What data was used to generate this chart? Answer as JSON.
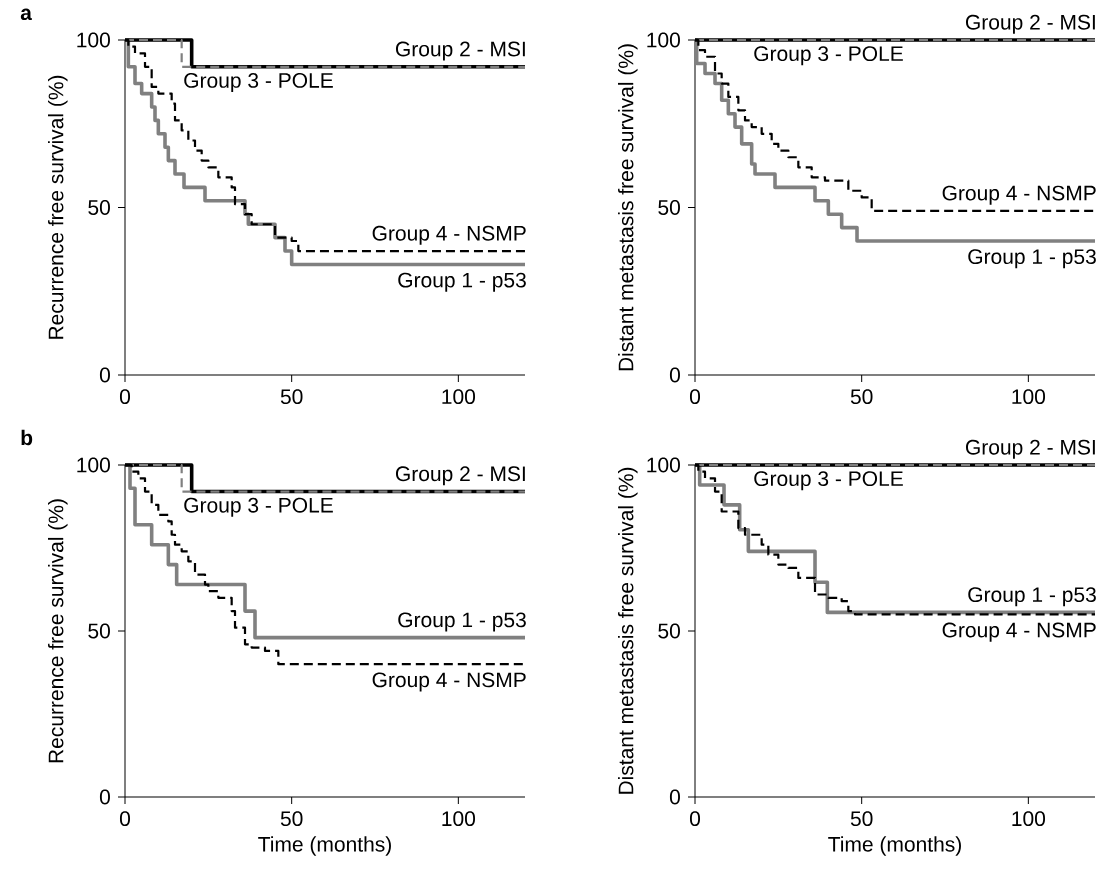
{
  "chart_data": [
    {
      "type": "step",
      "title": "a",
      "ylabel": "Recurrence free survival (%)",
      "xlim": [
        0,
        120
      ],
      "ylim": [
        0,
        100
      ],
      "xticks": [
        0,
        50,
        100
      ],
      "yticks": [
        0,
        50,
        100
      ],
      "series": [
        {
          "name": "Group 1 - p53",
          "color": "#808080",
          "line_style": "solid",
          "x": [
            0,
            1,
            3,
            5,
            8,
            9,
            10,
            12,
            13,
            15,
            17.7,
            24,
            36,
            37,
            45,
            48,
            50,
            120
          ],
          "values": [
            100,
            92,
            87,
            84,
            80,
            76,
            72,
            68,
            64,
            60,
            56,
            52,
            48,
            45,
            41,
            37,
            33,
            33
          ]
        },
        {
          "name": "Group 2 - MSI",
          "color": "#000000",
          "line_style": "solid",
          "x": [
            0,
            20,
            120
          ],
          "values": [
            100,
            92,
            92
          ]
        },
        {
          "name": "Group 3 - POLE",
          "color": "#808080",
          "line_style": "dashed",
          "x": [
            0,
            17,
            120
          ],
          "values": [
            100,
            92,
            92
          ]
        },
        {
          "name": "Group 4 - NSMP",
          "color": "#000000",
          "line_style": "dashed",
          "x": [
            0,
            1,
            3,
            6,
            8,
            10,
            14,
            15,
            17,
            19,
            21,
            23,
            25,
            28,
            32,
            33,
            36,
            38,
            45,
            50,
            52,
            120
          ],
          "values": [
            100,
            98,
            96,
            92,
            86,
            84,
            81,
            76,
            73,
            70,
            67,
            64,
            62,
            59,
            56,
            51,
            48,
            45,
            41,
            40,
            37,
            37
          ]
        }
      ]
    },
    {
      "type": "step",
      "ylabel": "Distant metastasis free survival (%)",
      "xlim": [
        0,
        120
      ],
      "ylim": [
        0,
        100
      ],
      "xticks": [
        0,
        50,
        100
      ],
      "yticks": [
        0,
        50,
        100
      ],
      "series": [
        {
          "name": "Group 1 - p53",
          "color": "#808080",
          "line_style": "solid",
          "x": [
            0,
            0.5,
            3,
            6,
            8,
            10,
            12,
            14,
            17,
            18,
            24,
            36,
            40,
            44,
            48.6,
            120
          ],
          "values": [
            100,
            93,
            90,
            87,
            82,
            78,
            74,
            69,
            63,
            60,
            56,
            52,
            48,
            44,
            40,
            40
          ]
        },
        {
          "name": "Group 2 - MSI",
          "color": "#000000",
          "line_style": "solid",
          "x": [
            0,
            120
          ],
          "values": [
            100,
            100
          ]
        },
        {
          "name": "Group 3 - POLE",
          "color": "#808080",
          "line_style": "dashed",
          "x": [
            0,
            120
          ],
          "values": [
            100,
            100
          ]
        },
        {
          "name": "Group 4 - NSMP",
          "color": "#000000",
          "line_style": "dashed",
          "x": [
            0,
            1,
            3,
            6,
            8,
            10,
            13,
            15,
            17,
            20,
            23,
            25,
            28,
            31,
            35,
            39,
            46,
            50,
            53,
            120
          ],
          "values": [
            100,
            97,
            95,
            90,
            87,
            83,
            79,
            76,
            74,
            72,
            69,
            67,
            65,
            62,
            59,
            58,
            55,
            53,
            49,
            49
          ]
        }
      ]
    },
    {
      "type": "step",
      "title": "b",
      "xlabel": "Time (months)",
      "ylabel": "Recurrence free survival (%)",
      "xlim": [
        0,
        120
      ],
      "ylim": [
        0,
        100
      ],
      "xticks": [
        0,
        50,
        100
      ],
      "yticks": [
        0,
        50,
        100
      ],
      "series": [
        {
          "name": "Group 1 - p53",
          "color": "#808080",
          "line_style": "solid",
          "x": [
            0,
            1.5,
            3,
            8,
            13,
            15.5,
            36,
            39,
            120
          ],
          "values": [
            100,
            93,
            82,
            76,
            70,
            64,
            56,
            48,
            48
          ]
        },
        {
          "name": "Group 2 - MSI",
          "color": "#000000",
          "line_style": "solid",
          "x": [
            0,
            20,
            120
          ],
          "values": [
            100,
            92,
            92
          ]
        },
        {
          "name": "Group 3 - POLE",
          "color": "#808080",
          "line_style": "dashed",
          "x": [
            0,
            17,
            120
          ],
          "values": [
            100,
            92,
            92
          ]
        },
        {
          "name": "Group 4 - NSMP",
          "color": "#000000",
          "line_style": "dashed",
          "x": [
            0,
            2,
            4,
            6,
            8,
            10,
            13,
            14,
            15,
            17,
            19,
            21,
            24,
            25,
            28,
            32,
            33,
            36,
            38,
            42,
            46,
            120
          ],
          "values": [
            100,
            98,
            96,
            92,
            88,
            85,
            83,
            79,
            76,
            74,
            71,
            67,
            64,
            62,
            60,
            56,
            51,
            46,
            45,
            44,
            40,
            40
          ]
        }
      ]
    },
    {
      "type": "step",
      "xlabel": "Time (months)",
      "ylabel": "Distant metastasis free survival (%)",
      "xlim": [
        0,
        120
      ],
      "ylim": [
        0,
        100
      ],
      "xticks": [
        0,
        50,
        100
      ],
      "yticks": [
        0,
        50,
        100
      ],
      "series": [
        {
          "name": "Group 1 - p53",
          "color": "#808080",
          "line_style": "solid",
          "x": [
            0,
            1.4,
            8.7,
            13.4,
            16,
            36,
            39.7,
            120
          ],
          "values": [
            100,
            94,
            88,
            80.5,
            74,
            64.7,
            55.6,
            55.6
          ]
        },
        {
          "name": "Group 2 - MSI",
          "color": "#000000",
          "line_style": "solid",
          "x": [
            0,
            120
          ],
          "values": [
            100,
            100
          ]
        },
        {
          "name": "Group 3 - POLE",
          "color": "#808080",
          "line_style": "dashed",
          "x": [
            0,
            120
          ],
          "values": [
            100,
            100
          ]
        },
        {
          "name": "Group 4 - NSMP",
          "color": "#000000",
          "line_style": "dashed",
          "x": [
            0,
            1,
            3,
            6,
            8,
            13,
            15,
            20,
            22,
            25,
            28,
            31,
            36,
            40,
            44,
            46,
            48,
            120
          ],
          "values": [
            100,
            98,
            96,
            92,
            86,
            81,
            79,
            76,
            73,
            70,
            69,
            66,
            61,
            60,
            59,
            56,
            55,
            55
          ]
        }
      ]
    }
  ]
}
